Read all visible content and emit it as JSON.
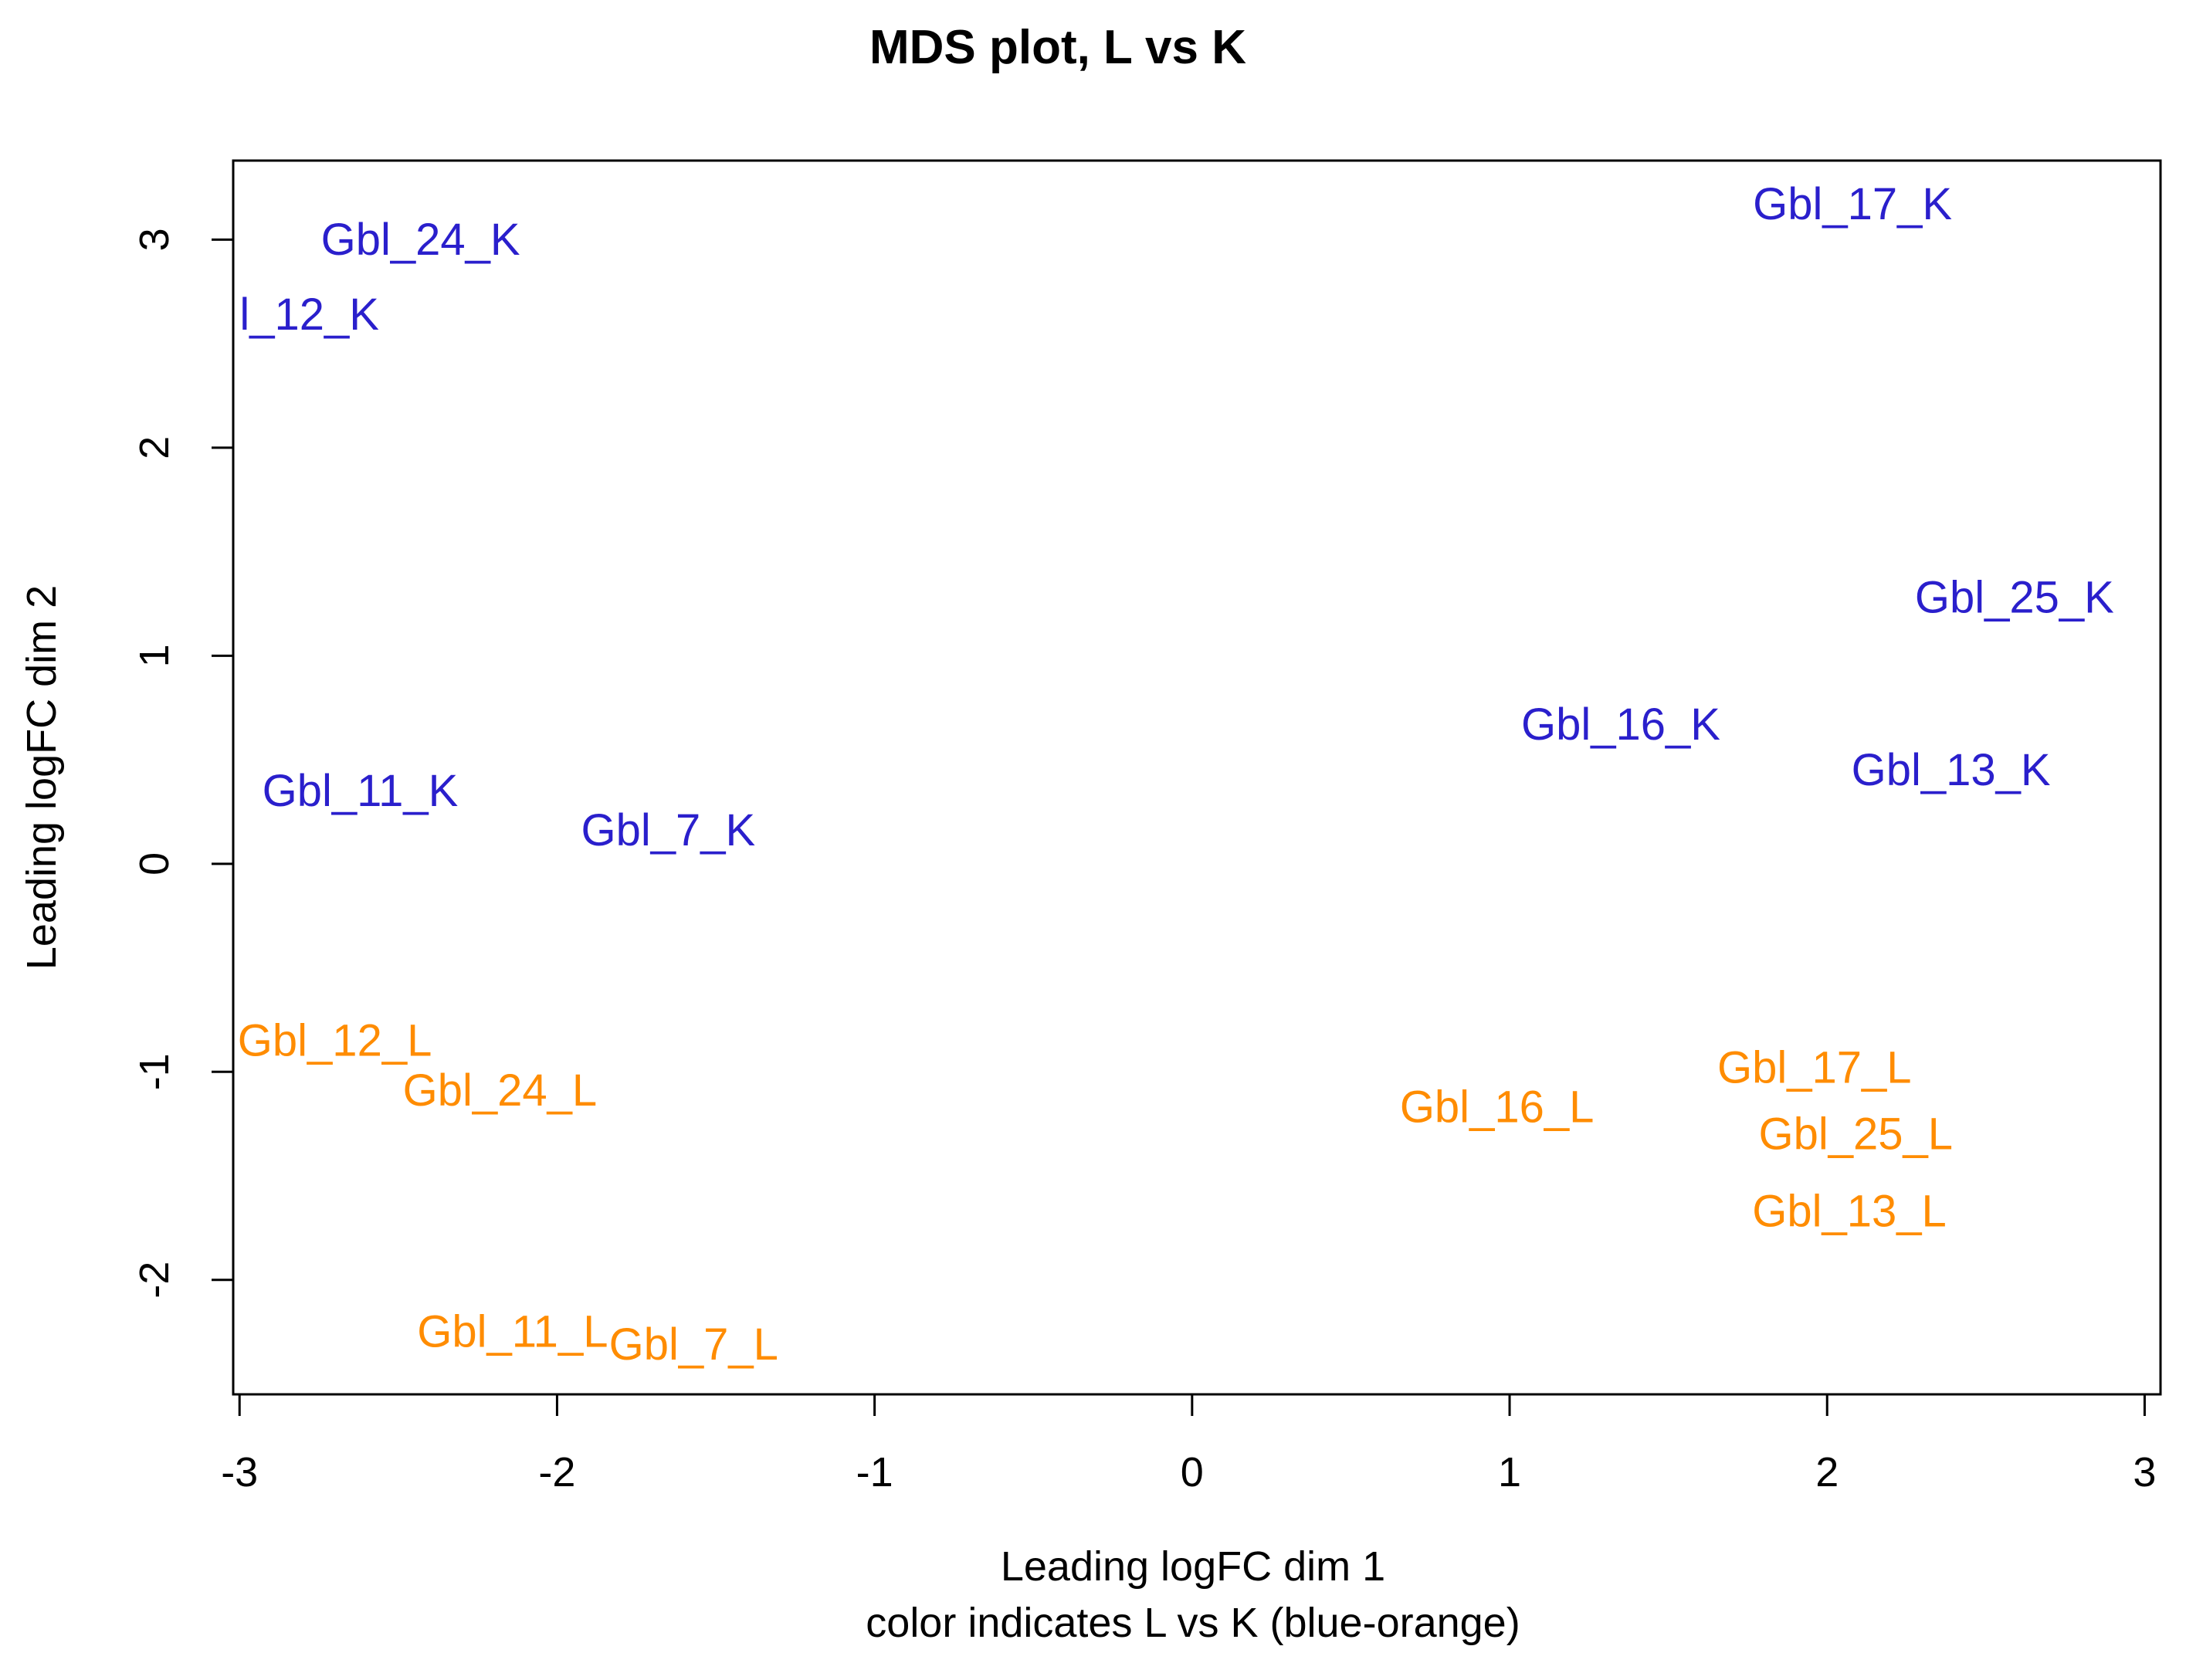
{
  "chart_data": {
    "type": "scatter",
    "title": "MDS plot, L vs K",
    "xlabel": "Leading logFC dim 1",
    "xlabel2": "color indicates L vs K (blue-orange)",
    "ylabel": "Leading logFC dim 2",
    "xlim": [
      -3.02,
      3.05
    ],
    "ylim": [
      -2.55,
      3.38
    ],
    "xticks": [
      -3,
      -2,
      -1,
      0,
      1,
      2,
      3
    ],
    "yticks": [
      -2,
      -1,
      0,
      1,
      2,
      3
    ],
    "grid": false,
    "colors": {
      "K": "#2a1fcc",
      "L": "#ff8c00",
      "axis": "#000000"
    },
    "series": [
      {
        "name": "K",
        "color": "#2a1fcc",
        "points": [
          {
            "label": "Gbl_24_K",
            "x": -2.43,
            "y": 3.0
          },
          {
            "label": "l_12_K",
            "x": -2.78,
            "y": 2.64
          },
          {
            "label": "Gbl_17_K",
            "x": 2.08,
            "y": 3.17
          },
          {
            "label": "Gbl_25_K",
            "x": 2.59,
            "y": 1.28
          },
          {
            "label": "Gbl_16_K",
            "x": 1.35,
            "y": 0.67
          },
          {
            "label": "Gbl_13_K",
            "x": 2.39,
            "y": 0.45
          },
          {
            "label": "Gbl_11_K",
            "x": -2.62,
            "y": 0.35
          },
          {
            "label": "Gbl_7_K",
            "x": -1.65,
            "y": 0.16
          }
        ]
      },
      {
        "name": "L",
        "color": "#ff8c00",
        "points": [
          {
            "label": "Gbl_12_L",
            "x": -2.7,
            "y": -0.85
          },
          {
            "label": "Gbl_24_L",
            "x": -2.18,
            "y": -1.09
          },
          {
            "label": "Gbl_16_L",
            "x": 0.96,
            "y": -1.17
          },
          {
            "label": "Gbl_17_L",
            "x": 1.96,
            "y": -0.98
          },
          {
            "label": "Gbl_25_L",
            "x": 2.09,
            "y": -1.3
          },
          {
            "label": "Gbl_13_L",
            "x": 2.07,
            "y": -1.67
          },
          {
            "label": "Gbl_11_L",
            "x": -2.14,
            "y": -2.25
          },
          {
            "label": "Gbl_7_L",
            "x": -1.57,
            "y": -2.31
          }
        ]
      }
    ]
  }
}
